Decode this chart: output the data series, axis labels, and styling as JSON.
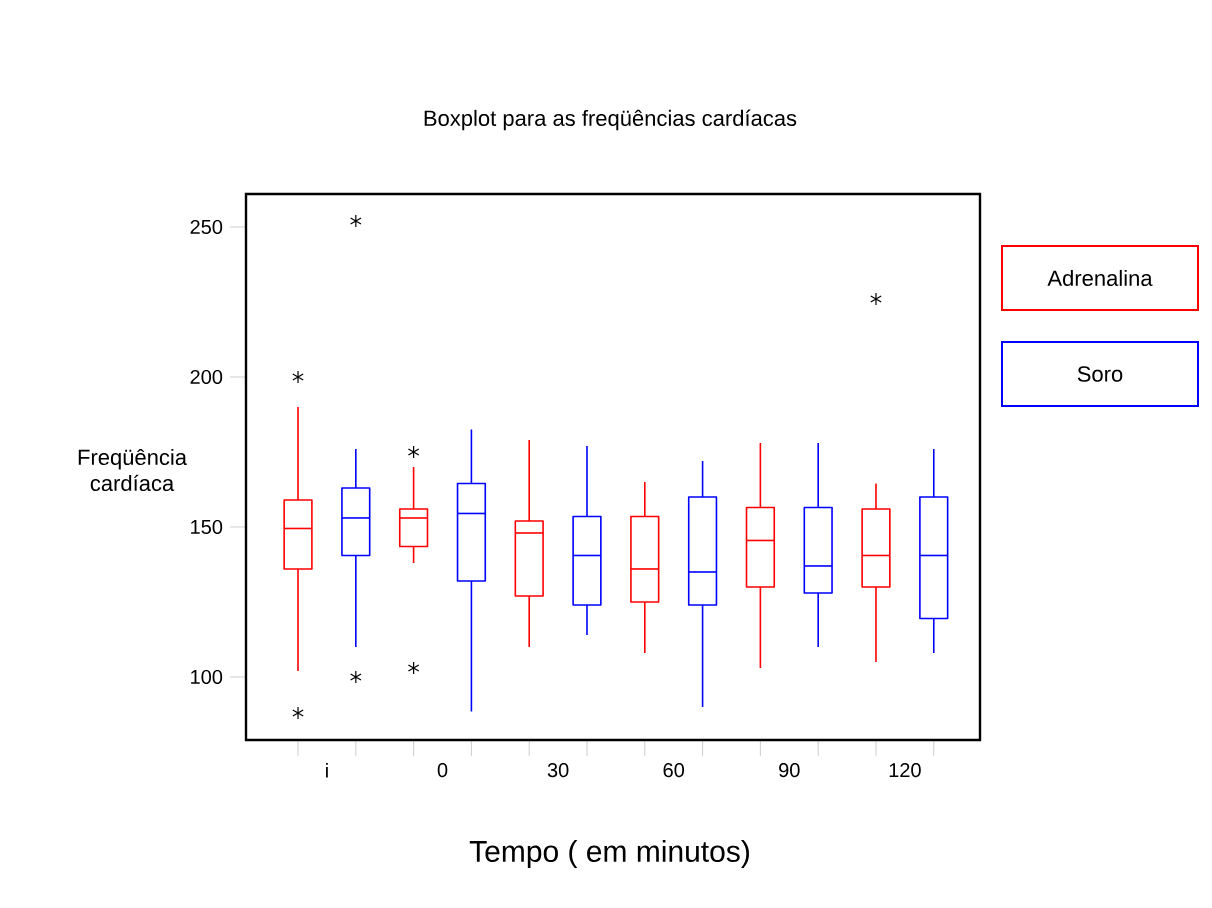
{
  "chart_data": {
    "type": "box",
    "title": "Boxplot  para as freqüências cardíacas",
    "xlabel": "Tempo ( em minutos)",
    "ylabel": "Freqüência cardíaca",
    "categories": [
      "i",
      "0",
      "30",
      "60",
      "90",
      "120"
    ],
    "ylim": [
      79,
      261
    ],
    "yticks": [
      100,
      150,
      200,
      250
    ],
    "legend": "right",
    "series": [
      {
        "name": "Adrenalina",
        "color": "#ff0000",
        "boxes": [
          {
            "low": 102,
            "q1": 136,
            "median": 149.5,
            "q3": 159,
            "high": 190,
            "outliers": [
              200,
              88
            ]
          },
          {
            "low": 138,
            "q1": 143.5,
            "median": 153,
            "q3": 156,
            "high": 170,
            "outliers": [
              175,
              103
            ]
          },
          {
            "low": 110,
            "q1": 127,
            "median": 148,
            "q3": 152,
            "high": 179
          },
          {
            "low": 108,
            "q1": 125,
            "median": 136,
            "q3": 153.5,
            "high": 165
          },
          {
            "low": 103,
            "q1": 130,
            "median": 145.5,
            "q3": 156.5,
            "high": 178
          },
          {
            "low": 105,
            "q1": 130,
            "median": 140.5,
            "q3": 156,
            "high": 164.5,
            "outliers": [
              226
            ]
          }
        ]
      },
      {
        "name": "Soro",
        "color": "#0000ff",
        "boxes": [
          {
            "low": 110,
            "q1": 140.5,
            "median": 153,
            "q3": 163,
            "high": 176,
            "outliers": [
              252,
              100
            ]
          },
          {
            "low": 88.5,
            "q1": 132,
            "median": 154.5,
            "q3": 164.5,
            "high": 182.5
          },
          {
            "low": 114,
            "q1": 124,
            "median": 140.5,
            "q3": 153.5,
            "high": 177
          },
          {
            "low": 90,
            "q1": 124,
            "median": 135,
            "q3": 160,
            "high": 172
          },
          {
            "low": 110,
            "q1": 128,
            "median": 137,
            "q3": 156.5,
            "high": 178
          },
          {
            "low": 108,
            "q1": 119.5,
            "median": 140.5,
            "q3": 160,
            "high": 176
          }
        ]
      }
    ]
  }
}
